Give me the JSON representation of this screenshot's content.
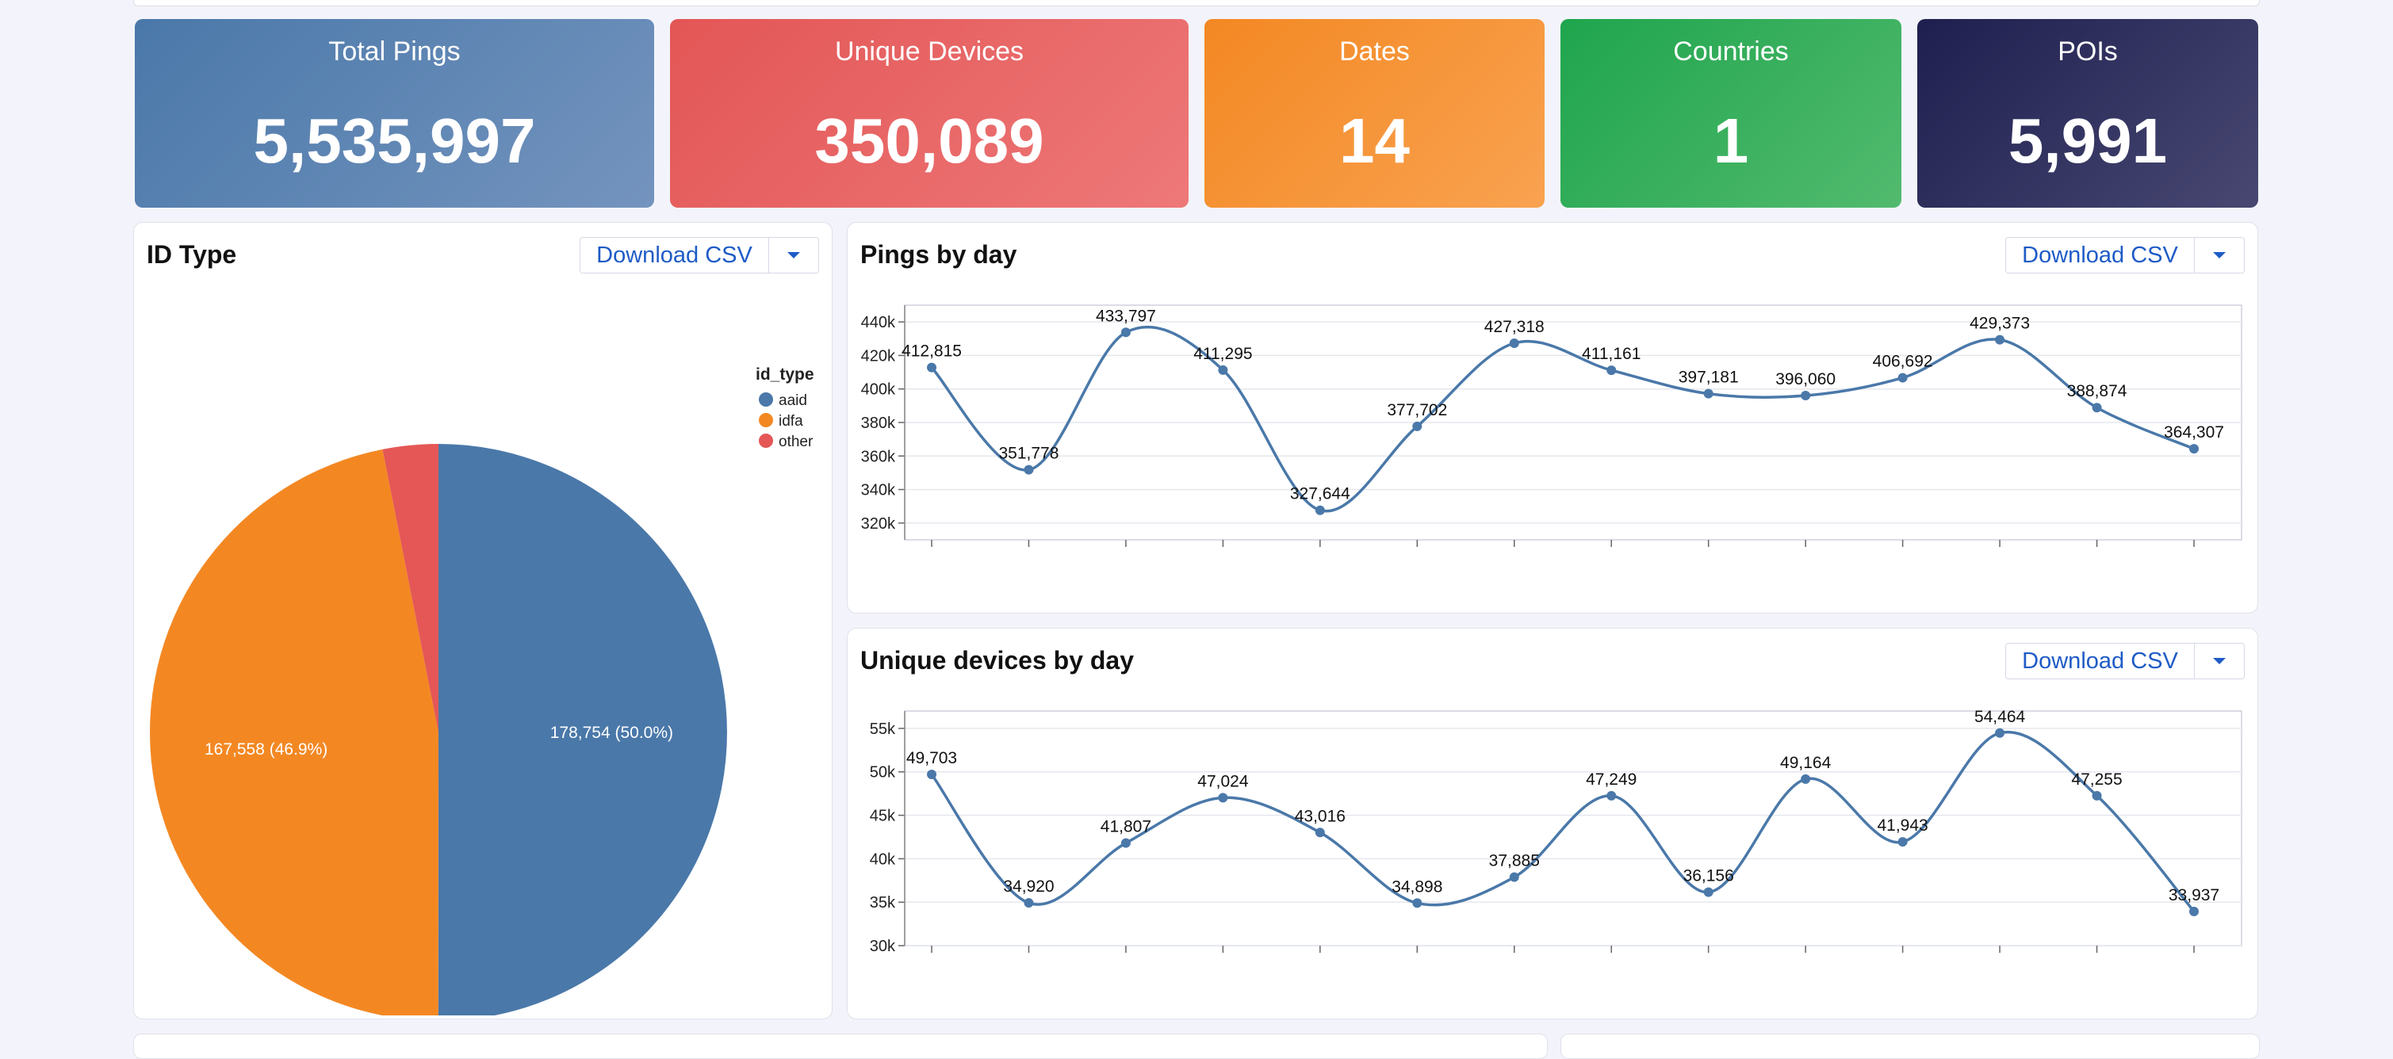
{
  "kpis": [
    {
      "label": "Total Pings",
      "value": "5,535,997",
      "color_from": "#4a78a9",
      "color_to": "#7494be"
    },
    {
      "label": "Unique Devices",
      "value": "350,089",
      "color_from": "#e35656",
      "color_to": "#ee7878"
    },
    {
      "label": "Dates",
      "value": "14",
      "color_from": "#f38823",
      "color_to": "#f9a250"
    },
    {
      "label": "Countries",
      "value": "1",
      "color_from": "#1fa54d",
      "color_to": "#52ba6e"
    },
    {
      "label": "POIs",
      "value": "5,991",
      "color_from": "#1e1f4f",
      "color_to": "#484872"
    }
  ],
  "panels": {
    "id_type": {
      "title": "ID Type",
      "download_label": "Download CSV"
    },
    "pings": {
      "title": "Pings by day",
      "download_label": "Download CSV"
    },
    "devices": {
      "title": "Unique devices by day",
      "download_label": "Download CSV"
    }
  },
  "colors": {
    "series": "#4a78a9",
    "download_text": "#1e5bc6"
  },
  "chart_data": [
    {
      "type": "pie",
      "legend_title": "id_type",
      "legend_position": "top-right",
      "slices": [
        {
          "label": "aaid",
          "value": 178754,
          "data_label": "178,754 (50.0%)",
          "color": "#4a78a9"
        },
        {
          "label": "idfa",
          "value": 167558,
          "data_label": "167,558 (46.9%)",
          "color": "#f38823"
        },
        {
          "label": "other",
          "value": 11100,
          "data_label": "",
          "color": "#e45756"
        }
      ]
    },
    {
      "type": "line",
      "title": "Pings by day",
      "ylim": [
        310000,
        450000
      ],
      "yticks": [
        320000,
        340000,
        360000,
        380000,
        400000,
        420000,
        440000
      ],
      "ytick_labels": [
        "320k",
        "340k",
        "360k",
        "380k",
        "400k",
        "420k",
        "440k"
      ],
      "grid": true,
      "values": [
        412815,
        351778,
        433797,
        411295,
        327644,
        377702,
        427318,
        411161,
        397181,
        396060,
        406692,
        429373,
        388874,
        364307
      ],
      "data_labels": [
        "412,815",
        "351,778",
        "433,797",
        "411,295",
        "327,644",
        "377,702",
        "427,318",
        "411,161",
        "397,181",
        "396,060",
        "406,692",
        "429,373",
        "388,874",
        "364,307"
      ]
    },
    {
      "type": "line",
      "title": "Unique devices by day",
      "ylim": [
        30000,
        57000
      ],
      "yticks": [
        30000,
        35000,
        40000,
        45000,
        50000,
        55000
      ],
      "ytick_labels": [
        "30k",
        "35k",
        "40k",
        "45k",
        "50k",
        "55k"
      ],
      "grid": true,
      "values": [
        49703,
        34920,
        41807,
        47024,
        43016,
        34898,
        37885,
        47249,
        36156,
        49164,
        41943,
        54464,
        47255,
        33937
      ],
      "data_labels": [
        "49,703",
        "34,920",
        "41,807",
        "47,024",
        "43,016",
        "34,898",
        "37,885",
        "47,249",
        "36,156",
        "49,164",
        "41,943",
        "54,464",
        "47,255",
        "33,937"
      ]
    }
  ]
}
